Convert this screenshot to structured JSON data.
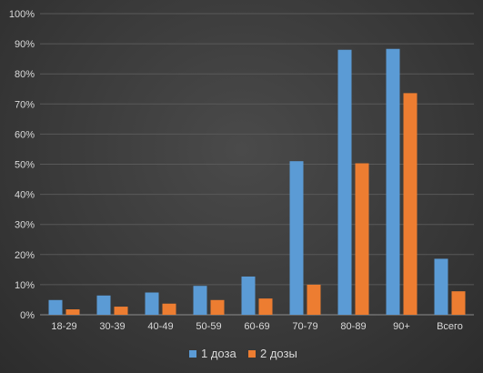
{
  "chart_data": {
    "type": "bar",
    "categories": [
      "18-29",
      "30-39",
      "40-49",
      "50-59",
      "60-69",
      "70-79",
      "80-89",
      "90+",
      "Всего"
    ],
    "series": [
      {
        "name": "1 доза",
        "values": [
          4.9,
          6.4,
          7.4,
          9.6,
          12.7,
          51.0,
          88.0,
          88.3,
          18.6
        ]
      },
      {
        "name": "2 дозы",
        "values": [
          1.8,
          2.7,
          3.7,
          4.9,
          5.4,
          10.0,
          50.3,
          73.6,
          7.8
        ]
      }
    ],
    "ylim": [
      0,
      100
    ],
    "yticks": [
      "0%",
      "10%",
      "20%",
      "30%",
      "40%",
      "50%",
      "60%",
      "70%",
      "80%",
      "90%",
      "100%"
    ],
    "grid": true,
    "legend_position": "bottom",
    "colors": {
      "series_1": "#5b9bd5",
      "series_2": "#ed7d31",
      "grid": "#595959",
      "text": "#d9d9d9"
    }
  }
}
